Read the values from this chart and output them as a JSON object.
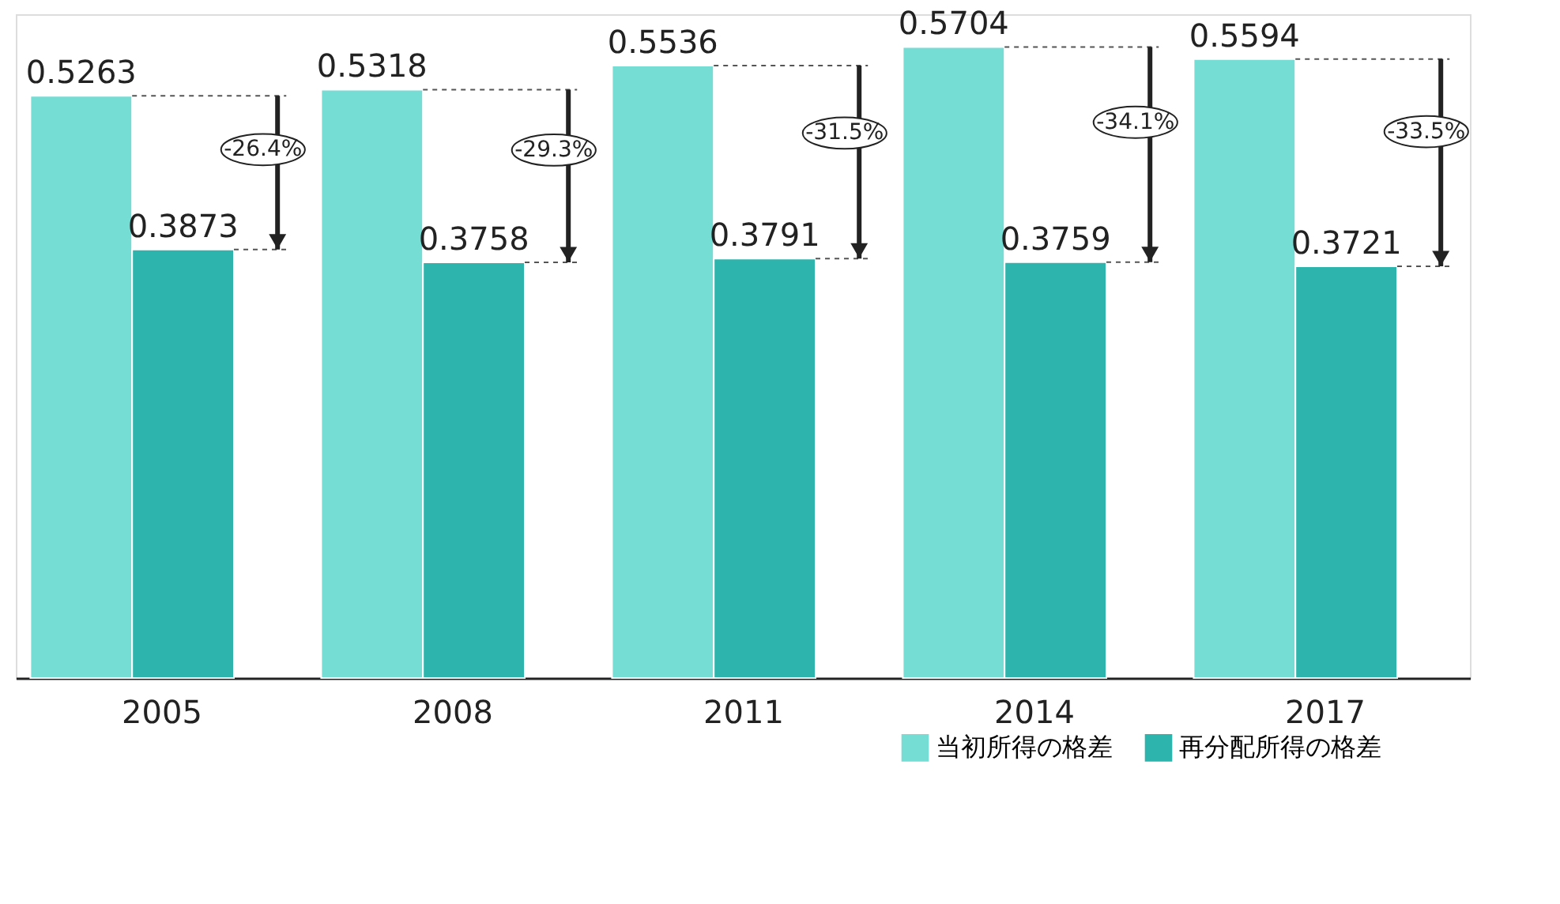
{
  "chart_data": {
    "type": "bar",
    "categories": [
      "2005",
      "2008",
      "2011",
      "2014",
      "2017"
    ],
    "series": [
      {
        "name": "当初所得の格差",
        "color": "#76ddd5",
        "values": [
          0.5263,
          0.5318,
          0.5536,
          0.5704,
          0.5594
        ]
      },
      {
        "name": "再分配所得の格差",
        "color": "#2db5ad",
        "values": [
          0.3873,
          0.3758,
          0.3791,
          0.3759,
          0.3721
        ]
      }
    ],
    "data_labels": true,
    "legend": "bottom right",
    "grid": false,
    "annotations": [
      "-26.4%",
      "-29.3%",
      "-31.5%",
      "-34.1%",
      "-33.5%"
    ]
  }
}
